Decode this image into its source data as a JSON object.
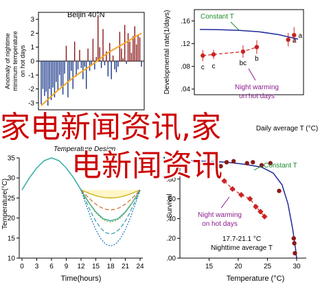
{
  "chart_data": [
    {
      "type": "bar",
      "title": "Beijin 40°N",
      "ylabel": "Anomaly of nightime minimum temperature on hot days",
      "xlabel": "",
      "ylim": [
        -3.5,
        3.5
      ],
      "yticks": [
        -3,
        -2,
        -1,
        0,
        1,
        2,
        3
      ],
      "grid": false,
      "values": [
        -3.1,
        -2.0,
        -2.5,
        -2.2,
        -3.2,
        -2.0,
        -2.8,
        -1.9,
        -2.6,
        -1.5,
        -2.1,
        -1.0,
        -1.8,
        -2.4,
        -0.9,
        1.1,
        -2.6,
        -1.4,
        -0.7,
        -2.0,
        1.4,
        -1.1,
        -0.6,
        0.8,
        -0.5,
        -1.3,
        -0.4,
        -2.0,
        0.9,
        -0.7,
        -0.3,
        1.6,
        -0.6,
        0.3,
        3.3,
        1.0,
        -0.5,
        2.3,
        -0.3,
        0.7,
        -1.1,
        1.3,
        -1.3,
        0.4,
        -0.6,
        -0.8,
        -0.4,
        2.1,
        0.9,
        0.2,
        2.6,
        -0.2,
        2.0,
        1.4,
        0.6,
        1.8,
        2.5,
        1.2,
        1.9,
        1.7,
        -0.4
      ],
      "trend": [
        [
          0,
          -3.2
        ],
        [
          10,
          -2.1
        ],
        [
          20,
          -1.1
        ],
        [
          30,
          -0.3
        ],
        [
          40,
          0.6
        ],
        [
          50,
          1.3
        ],
        [
          60,
          2.0
        ]
      ],
      "colors": {
        "positive": "#8b1a1a",
        "negative": "#1f3c8c",
        "trend": "#f5a623"
      }
    },
    {
      "type": "scatter",
      "title": "",
      "xlabel": "Daily average T (°C)",
      "ylabel": "Developmental rate(1/days)",
      "ylim": [
        0.03,
        0.18
      ],
      "yticks": [
        0.04,
        0.08,
        0.12,
        0.16
      ],
      "grid": false,
      "legend": [
        "Constant T",
        "Night warming on hot days"
      ],
      "constant_curve": [
        [
          0,
          0.145
        ],
        [
          0.2,
          0.1445
        ],
        [
          0.4,
          0.1435
        ],
        [
          0.6,
          0.141
        ],
        [
          0.8,
          0.136
        ],
        [
          1,
          0.128
        ]
      ],
      "constant_points": [
        {
          "x": 0.9,
          "y": 0.127,
          "err": 0.012,
          "label": "a"
        },
        {
          "x": 0.96,
          "y": 0.135,
          "err": 0.014,
          "label": "a"
        }
      ],
      "night_points": [
        {
          "x": 0.03,
          "y": 0.099,
          "err": 0.01,
          "label": "c"
        },
        {
          "x": 0.14,
          "y": 0.101,
          "err": 0.008,
          "label": "c"
        },
        {
          "x": 0.44,
          "y": 0.106,
          "err": 0.011,
          "label": "bc"
        },
        {
          "x": 0.58,
          "y": 0.114,
          "err": 0.012,
          "label": "b"
        }
      ],
      "colors": {
        "constant": "#1f2a9c",
        "night": "#cc2222",
        "constant_label": "#1a8c2a",
        "night_label": "#8b1a8b"
      }
    },
    {
      "type": "area",
      "title": "Temperature Design",
      "xlabel": "Time(hours)",
      "ylabel": "Temperature(°C)",
      "xlim": [
        0,
        24
      ],
      "ylim": [
        10,
        35
      ],
      "xticks": [
        0,
        3,
        6,
        9,
        12,
        15,
        18,
        21,
        24
      ],
      "yticks": [
        10,
        15,
        20,
        25,
        30,
        35
      ],
      "grid": false,
      "main_curve": [
        [
          0,
          27
        ],
        [
          1.5,
          30
        ],
        [
          3,
          32.5
        ],
        [
          4.5,
          34.3
        ],
        [
          6,
          35
        ],
        [
          7.5,
          34.3
        ],
        [
          9,
          32.5
        ],
        [
          10.5,
          30
        ],
        [
          12,
          27
        ],
        [
          13.5,
          24
        ],
        [
          15,
          21.5
        ],
        [
          16.5,
          19.8
        ],
        [
          18,
          19.3
        ],
        [
          19.5,
          19.8
        ],
        [
          21,
          21.5
        ],
        [
          22.5,
          24
        ],
        [
          24,
          27
        ]
      ],
      "night_minima": [
        25,
        22,
        19,
        16,
        13
      ],
      "colors": {
        "main": "#3cb0a8",
        "lines": [
          "#c8a800",
          "#d06a28",
          "#8fb020",
          "#2a9ab0",
          "#1a6fb8"
        ],
        "fill": "#fff6c8"
      }
    },
    {
      "type": "scatter",
      "title": "",
      "xlabel": "Temperature (°C)",
      "ylabel": "Survival",
      "xlim": [
        10,
        30
      ],
      "ylim": [
        0,
        1
      ],
      "xticks": [
        15,
        20,
        25,
        30
      ],
      "yticks": [
        0,
        0.2,
        0.4,
        0.6,
        0.8,
        1
      ],
      "yticklabels": [
        ".00",
        ".20",
        ".40",
        ".60",
        ".80",
        "1.00"
      ],
      "grid": false,
      "legend": [
        "Constant T",
        "Night warming on hot days"
      ],
      "annotation": [
        "17.7-21.1 °C",
        "Nighttime average T"
      ],
      "constant_curve": [
        [
          10,
          0.99
        ],
        [
          14,
          0.98
        ],
        [
          18,
          0.97
        ],
        [
          21,
          0.95
        ],
        [
          24,
          0.92
        ],
        [
          26,
          0.86
        ],
        [
          27.5,
          0.74
        ],
        [
          28.5,
          0.55
        ],
        [
          29.3,
          0.3
        ],
        [
          29.8,
          0.1
        ],
        [
          30,
          0
        ]
      ],
      "constant_points": [
        [
          15,
          0.9
        ],
        [
          17,
          0.93
        ],
        [
          18,
          0.97
        ],
        [
          19.2,
          0.98
        ],
        [
          21.5,
          0.96
        ],
        [
          22.5,
          0.97
        ],
        [
          24,
          0.94
        ],
        [
          25.5,
          0.96
        ],
        [
          27,
          0.68
        ],
        [
          29.5,
          0.2
        ],
        [
          29.6,
          0.15
        ],
        [
          29.7,
          0.05
        ]
      ],
      "night_points": [
        [
          17.6,
          0.78
        ],
        [
          19,
          0.7
        ],
        [
          20.5,
          0.64
        ],
        [
          22,
          0.6
        ],
        [
          23,
          0.52
        ],
        [
          23.8,
          0.47
        ],
        [
          24.5,
          0.42
        ]
      ],
      "colors": {
        "constant": "#1f2a9c",
        "constant_points": "#8b1a1a",
        "night": "#cc2222",
        "constant_label": "#1a8c2a",
        "night_label": "#8b1a8b"
      }
    }
  ],
  "overlay": {
    "line1": "家电新闻资讯,家",
    "line2": "电新闻资讯"
  }
}
